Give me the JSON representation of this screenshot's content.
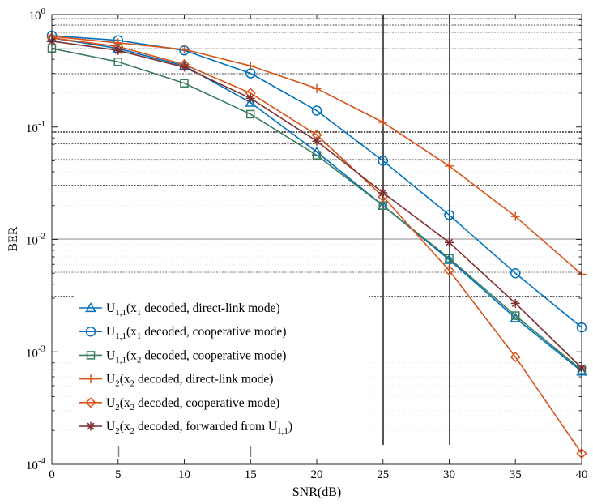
{
  "chart_data": {
    "type": "line",
    "xlabel": "SNR(dB)",
    "ylabel": "BER",
    "xlim": [
      0,
      40
    ],
    "yscale": "log",
    "ylim": [
      0.0001,
      1
    ],
    "x": [
      0,
      5,
      10,
      15,
      20,
      25,
      30,
      35,
      40
    ],
    "x_ticks": [
      "0",
      "5",
      "10",
      "15",
      "20",
      "25",
      "30",
      "35",
      "40"
    ],
    "y_ticks": [
      {
        "base": "10",
        "exp": "0",
        "value": 1
      },
      {
        "base": "10",
        "exp": "-1",
        "value": 0.1
      },
      {
        "base": "10",
        "exp": "-2",
        "value": 0.01
      },
      {
        "base": "10",
        "exp": "-3",
        "value": 0.001
      },
      {
        "base": "10",
        "exp": "-4",
        "value": 0.0001
      }
    ],
    "legend_location": "lower-left",
    "series": [
      {
        "name": "U1,1(x1 decoded, direct-link mode)",
        "legend": {
          "sym": "U",
          "sub": "1,1",
          "mid1": "(x",
          "sub2": "1",
          "tail": " decoded, direct-link mode)",
          "sub3": "",
          "close": ""
        },
        "color": "#0072BD",
        "marker": "triangle",
        "values": [
          0.62,
          0.5,
          0.35,
          0.165,
          0.06,
          0.02,
          0.0066,
          0.002,
          0.00067
        ]
      },
      {
        "name": "U1,1(x1 decoded, cooperative mode)",
        "legend": {
          "sym": "U",
          "sub": "1,1",
          "mid1": "(x",
          "sub2": "1",
          "tail": " decoded, cooperative mode)",
          "sub3": "",
          "close": ""
        },
        "color": "#0072BD",
        "marker": "circle",
        "values": [
          0.65,
          0.59,
          0.48,
          0.3,
          0.14,
          0.05,
          0.0165,
          0.005,
          0.00165
        ]
      },
      {
        "name": "U1,1(x2 decoded, cooperative mode)",
        "legend": {
          "sym": "U",
          "sub": "1,1",
          "mid1": "(x",
          "sub2": "2",
          "tail": " decoded, cooperative mode)",
          "sub3": "",
          "close": ""
        },
        "color": "#3B7D5C",
        "marker": "square",
        "values": [
          0.5,
          0.38,
          0.245,
          0.13,
          0.056,
          0.02,
          0.0068,
          0.0021,
          0.00069
        ]
      },
      {
        "name": "U2(x2 decoded, direct-link mode)",
        "legend": {
          "sym": "U",
          "sub": "2",
          "mid1": "(x",
          "sub2": "2",
          "tail": " decoded, direct-link mode)",
          "sub3": "",
          "close": ""
        },
        "color": "#D95319",
        "marker": "plus",
        "values": [
          0.64,
          0.56,
          0.49,
          0.35,
          0.22,
          0.11,
          0.045,
          0.016,
          0.0049
        ]
      },
      {
        "name": "U2(x2 decoded, cooperative mode)",
        "legend": {
          "sym": "U",
          "sub": "2",
          "mid1": "(x",
          "sub2": "2",
          "tail": " decoded, cooperative mode)",
          "sub3": "",
          "close": ""
        },
        "color": "#D95319",
        "marker": "diamond",
        "values": [
          0.62,
          0.52,
          0.36,
          0.2,
          0.085,
          0.024,
          0.0053,
          0.0009,
          0.000125
        ]
      },
      {
        "name": "U2(x2 decoded, forwarded from U1,1)",
        "legend": {
          "sym": "U",
          "sub": "2",
          "mid1": "(x",
          "sub2": "2",
          "tail": " decoded, forwarded from U",
          "sub3": "1,1",
          "close": ")"
        },
        "color": "#7E2F2F",
        "marker": "star",
        "values": [
          0.58,
          0.48,
          0.34,
          0.18,
          0.075,
          0.026,
          0.0094,
          0.0027,
          0.00072
        ]
      }
    ]
  }
}
